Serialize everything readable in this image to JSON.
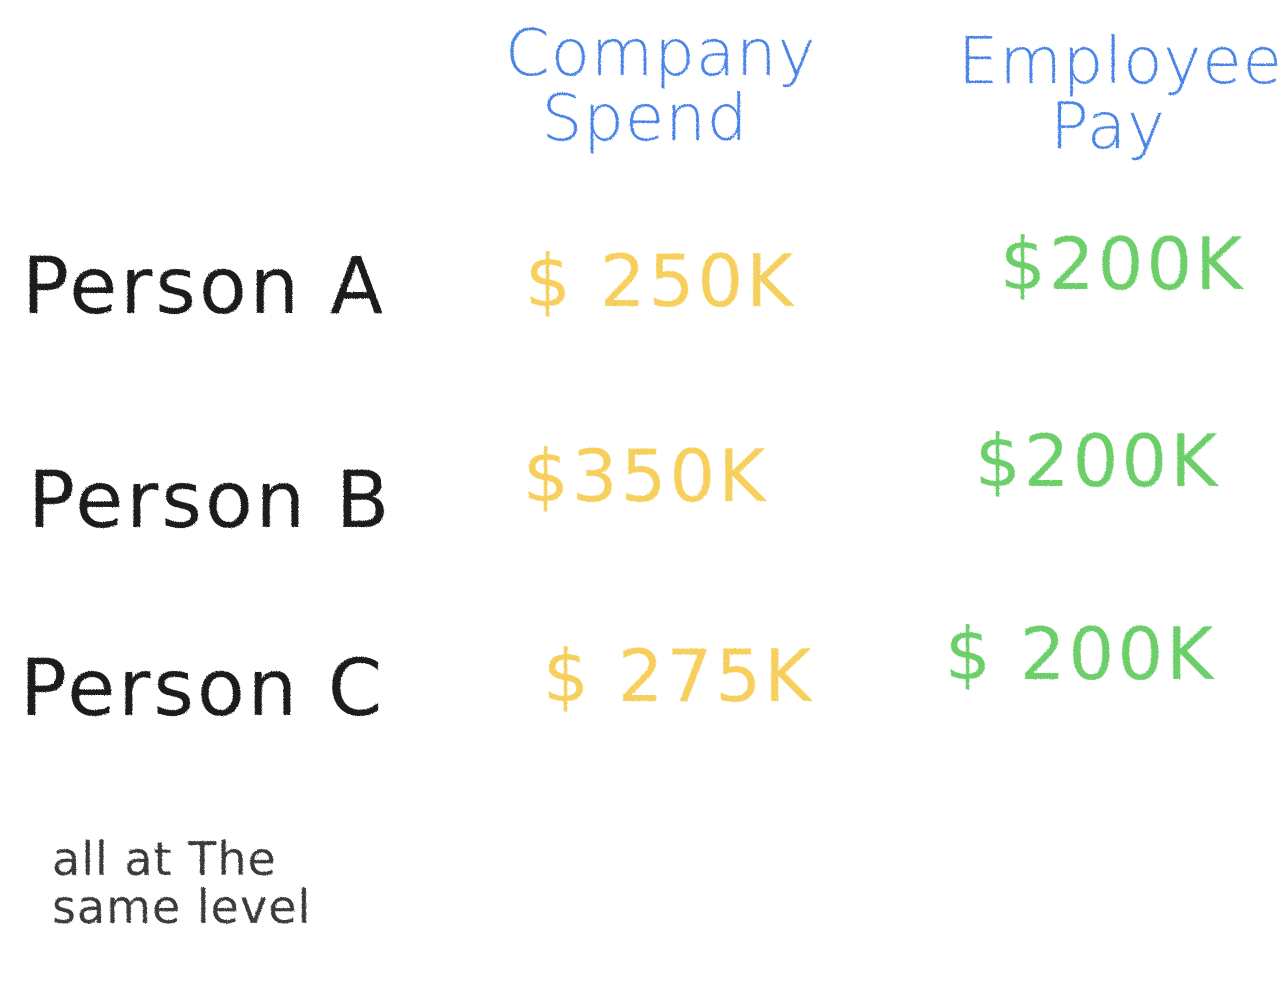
{
  "colors": {
    "header": "#4a84e8",
    "company_spend": "#f6cf5c",
    "employee_pay": "#6ccf6a",
    "label": "#1e1e1e",
    "note": "#3a3a3a"
  },
  "table": {
    "columns": [
      {
        "lines": [
          "Company",
          "Spend"
        ]
      },
      {
        "lines": [
          "Employee",
          "Pay"
        ]
      }
    ],
    "rows": [
      {
        "label": "Person A",
        "company_spend": "$ 250K",
        "employee_pay": "$200K"
      },
      {
        "label": "Person B",
        "company_spend": "$350K",
        "employee_pay": "$200K"
      },
      {
        "label": "Person   C",
        "company_spend": "$ 275K",
        "employee_pay": "$ 200K"
      }
    ]
  },
  "note": {
    "lines": [
      "all at The",
      "same level"
    ]
  }
}
